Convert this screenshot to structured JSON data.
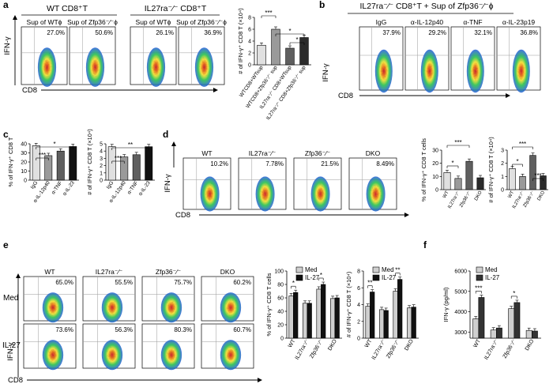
{
  "panel_letters": [
    "a",
    "b",
    "c",
    "d",
    "e",
    "f"
  ],
  "axis_text": {
    "ifng": "IFN-γ",
    "cd8": "CD8"
  },
  "a": {
    "group_titles": [
      "WT CD8⁺T",
      "IL27ra⁻⁄⁻ CD8⁺T"
    ],
    "plots": [
      {
        "header": "Sup of WTϕ",
        "pct": "27.0%"
      },
      {
        "header": "Sup of Zfp36⁻⁄⁻ϕ",
        "pct": "50.6%"
      },
      {
        "header": "Sup of WTϕ",
        "pct": "26.1%"
      },
      {
        "header": "Sup of Zfp36⁻⁄⁻ϕ",
        "pct": "36.9%"
      }
    ],
    "chart_ylabel": "# of IFN-γ⁺ CD8 T (×10⁴)",
    "sig": [
      "***",
      "*",
      "*"
    ]
  },
  "b": {
    "title": "IL27ra⁻⁄⁻ CD8⁺T + Sup of Zfp36⁻⁄⁻ϕ",
    "plots": [
      {
        "header": "IgG",
        "pct": "37.9%"
      },
      {
        "header": "α-IL-12p40",
        "pct": "29.2%"
      },
      {
        "header": "α-TNF",
        "pct": "32.1%"
      },
      {
        "header": "α-IL-23p19",
        "pct": "36.8%"
      }
    ]
  },
  "c": {
    "ylabel1": "% of IFN-γ⁺ CD8 T",
    "ylabel2": "# of IFN-γ⁺ CD8 T (×10⁴)",
    "sig1": [
      "*",
      "***"
    ],
    "sig2": [
      "**",
      "***"
    ]
  },
  "d": {
    "plots": [
      {
        "header": "WT",
        "pct": "10.2%"
      },
      {
        "header": "IL27ra⁻⁄⁻",
        "pct": "7.78%"
      },
      {
        "header": "Zfp36⁻⁄⁻",
        "pct": "21.5%"
      },
      {
        "header": "DKO",
        "pct": "8.49%"
      }
    ],
    "ylabel1": "% of IFN-γ⁺ CD8 T cells",
    "ylabel2": "# of IFN-γ⁺ CD8 T (×10⁴)",
    "sig1": [
      "***",
      "*"
    ],
    "sig2": [
      "***",
      "*",
      "***"
    ]
  },
  "e": {
    "col_headers": [
      "WT",
      "IL27ra⁻⁄⁻",
      "Zfp36⁻⁄⁻",
      "DKO"
    ],
    "row_labels": [
      "Med",
      "IL-27"
    ],
    "pcts": [
      [
        "65.0%",
        "55.5%",
        "75.7%",
        "60.2%"
      ],
      [
        "73.6%",
        "56.3%",
        "80.3%",
        "60.7%"
      ]
    ],
    "ylabel1": "% of IFN-γ⁺ CD8 T cells",
    "ylabel2": "# of IFN-γ⁺ CD8 T (×10⁴)",
    "sig1": [
      "*",
      "*"
    ],
    "sig2": [
      "**",
      "**"
    ]
  },
  "f": {
    "ylabel": "IFN-γ (pg/ml)",
    "sig": [
      "***",
      "*"
    ]
  },
  "legend": {
    "med": "Med",
    "il27": "IL-27"
  },
  "chart_data": [
    {
      "id": "a",
      "type": "bar",
      "categories": [
        "WTCD8+WTsup",
        "WTCD8+Zfp36⁻⁄⁻ sup",
        "IL27ra⁻⁄⁻ CD8+WTsup",
        "IL27ra⁻⁄⁻ CD8+Zfp36⁻⁄⁻ sup"
      ],
      "values": [
        3.3,
        6.0,
        2.8,
        4.6
      ],
      "colors": [
        "#e0e0e0",
        "#9a9a9a",
        "#5f5f5f",
        "#2b2b2b"
      ],
      "yticks": [
        0,
        2,
        4,
        6,
        8
      ],
      "ylim": [
        0,
        8
      ],
      "ylabel": "# of IFN-γ⁺ CD8 T (×10⁴)"
    },
    {
      "id": "c1",
      "type": "bar",
      "categories": [
        "IgG",
        "α-IL-12p40",
        "α-TNF",
        "α-IL-23"
      ],
      "values": [
        38,
        27,
        32,
        37
      ],
      "colors": [
        "#e0e0e0",
        "#9a9a9a",
        "#5f5f5f",
        "#111111"
      ],
      "yticks": [
        0,
        10,
        20,
        30,
        40
      ],
      "ylim": [
        0,
        40
      ],
      "ylabel": "% of IFN-γ⁺ CD8 T"
    },
    {
      "id": "c2",
      "type": "bar",
      "categories": [
        "IgG",
        "α-IL-12p40",
        "α-TNF",
        "α-IL-23"
      ],
      "values": [
        4.6,
        3.2,
        3.5,
        4.6
      ],
      "colors": [
        "#e0e0e0",
        "#9a9a9a",
        "#5f5f5f",
        "#111111"
      ],
      "yticks": [
        0,
        1,
        2,
        3,
        4,
        5
      ],
      "ylim": [
        0,
        5
      ],
      "ylabel": "# of IFN-γ⁺ CD8 T (×10⁴)"
    },
    {
      "id": "d1",
      "type": "bar",
      "categories": [
        "WT",
        "IL27ra⁻⁄⁻",
        "Zfp36⁻⁄⁻",
        "DKO"
      ],
      "values": [
        13,
        8.5,
        21.5,
        9
      ],
      "colors": [
        "#e0e0e0",
        "#9a9a9a",
        "#5f5f5f",
        "#2b2b2b"
      ],
      "yticks": [
        0,
        10,
        20,
        30
      ],
      "ylim": [
        0,
        30
      ],
      "ylabel": "% of IFN-γ⁺ CD8 T cells"
    },
    {
      "id": "d2",
      "type": "bar",
      "categories": [
        "WT",
        "IL27ra⁻⁄⁻",
        "Zfp36⁻⁄⁻",
        "DKO"
      ],
      "values": [
        1.6,
        1.0,
        2.6,
        1.05
      ],
      "colors": [
        "#e0e0e0",
        "#9a9a9a",
        "#5f5f5f",
        "#2b2b2b"
      ],
      "yticks": [
        0.0,
        1.0,
        2.0,
        3.0
      ],
      "ylim": [
        0,
        3
      ],
      "ylabel": "# of IFN-γ⁺ CD8 T (×10⁴)"
    },
    {
      "id": "e1",
      "type": "bar",
      "categories": [
        "WT",
        "IL27ra⁻⁄⁻",
        "Zfp36⁻⁄⁻",
        "DKO"
      ],
      "series": [
        {
          "name": "Med",
          "values": [
            63,
            52,
            73,
            59
          ]
        },
        {
          "name": "IL-27",
          "values": [
            68,
            52,
            80,
            60
          ]
        }
      ],
      "colors": [
        "#cfcfcf",
        "#111111"
      ],
      "yticks": [
        0,
        20,
        40,
        60,
        80,
        100
      ],
      "ylim": [
        0,
        100
      ],
      "ylabel": "% of IFN-γ⁺ CD8 T cells"
    },
    {
      "id": "e2",
      "type": "bar",
      "categories": [
        "WT",
        "IL27ra⁻⁄⁻",
        "Zfp36⁻⁄⁻",
        "DKO"
      ],
      "series": [
        {
          "name": "Med",
          "values": [
            3.8,
            3.4,
            5.6,
            3.6
          ]
        },
        {
          "name": "IL-27",
          "values": [
            5.5,
            3.3,
            7.0,
            3.7
          ]
        }
      ],
      "colors": [
        "#cfcfcf",
        "#111111"
      ],
      "yticks": [
        0,
        2,
        4,
        6,
        8
      ],
      "ylim": [
        0,
        8
      ],
      "ylabel": "# of IFN-γ⁺ CD8 T (×10⁴)"
    },
    {
      "id": "f",
      "type": "bar",
      "categories": [
        "WT",
        "IL27ra⁻⁄⁻",
        "Zfp36⁻⁄⁻",
        "DKO"
      ],
      "series": [
        {
          "name": "Med",
          "values": [
            3650,
            3100,
            4150,
            3080
          ]
        },
        {
          "name": "IL-27",
          "values": [
            4700,
            3200,
            4450,
            3050
          ]
        }
      ],
      "colors": [
        "#cfcfcf",
        "#333333"
      ],
      "yticks": [
        3000,
        4000,
        5000,
        6000
      ],
      "ylim": [
        2700,
        6000
      ],
      "ylabel": "IFN-γ (pg/ml)"
    }
  ]
}
